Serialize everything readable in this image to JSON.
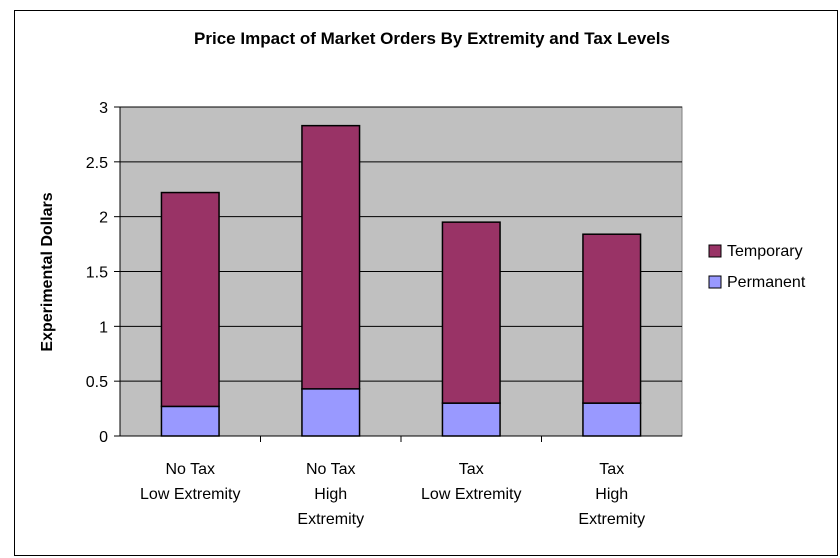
{
  "chart_data": {
    "type": "bar",
    "stacked": true,
    "title": "Price Impact of Market Orders By Extremity and Tax Levels",
    "ylabel": "Experimental Dollars",
    "xlabel": "",
    "ylim": [
      0,
      3
    ],
    "yticks": [
      "0",
      "0.5",
      "1",
      "1.5",
      "2",
      "2.5",
      "3"
    ],
    "grid": true,
    "legend_position": "right",
    "categories": [
      [
        "No Tax",
        "Low Extremity"
      ],
      [
        "No Tax",
        "High",
        "Extremity"
      ],
      [
        "Tax",
        "Low Extremity"
      ],
      [
        "Tax",
        "High",
        "Extremity"
      ]
    ],
    "series": [
      {
        "name": "Permanent",
        "values": [
          0.27,
          0.43,
          0.3,
          0.3
        ],
        "color": "#9999FF"
      },
      {
        "name": "Temporary",
        "values": [
          1.95,
          2.4,
          1.65,
          1.54
        ],
        "color": "#993366"
      }
    ],
    "plot_background": "#C0C0C0"
  }
}
